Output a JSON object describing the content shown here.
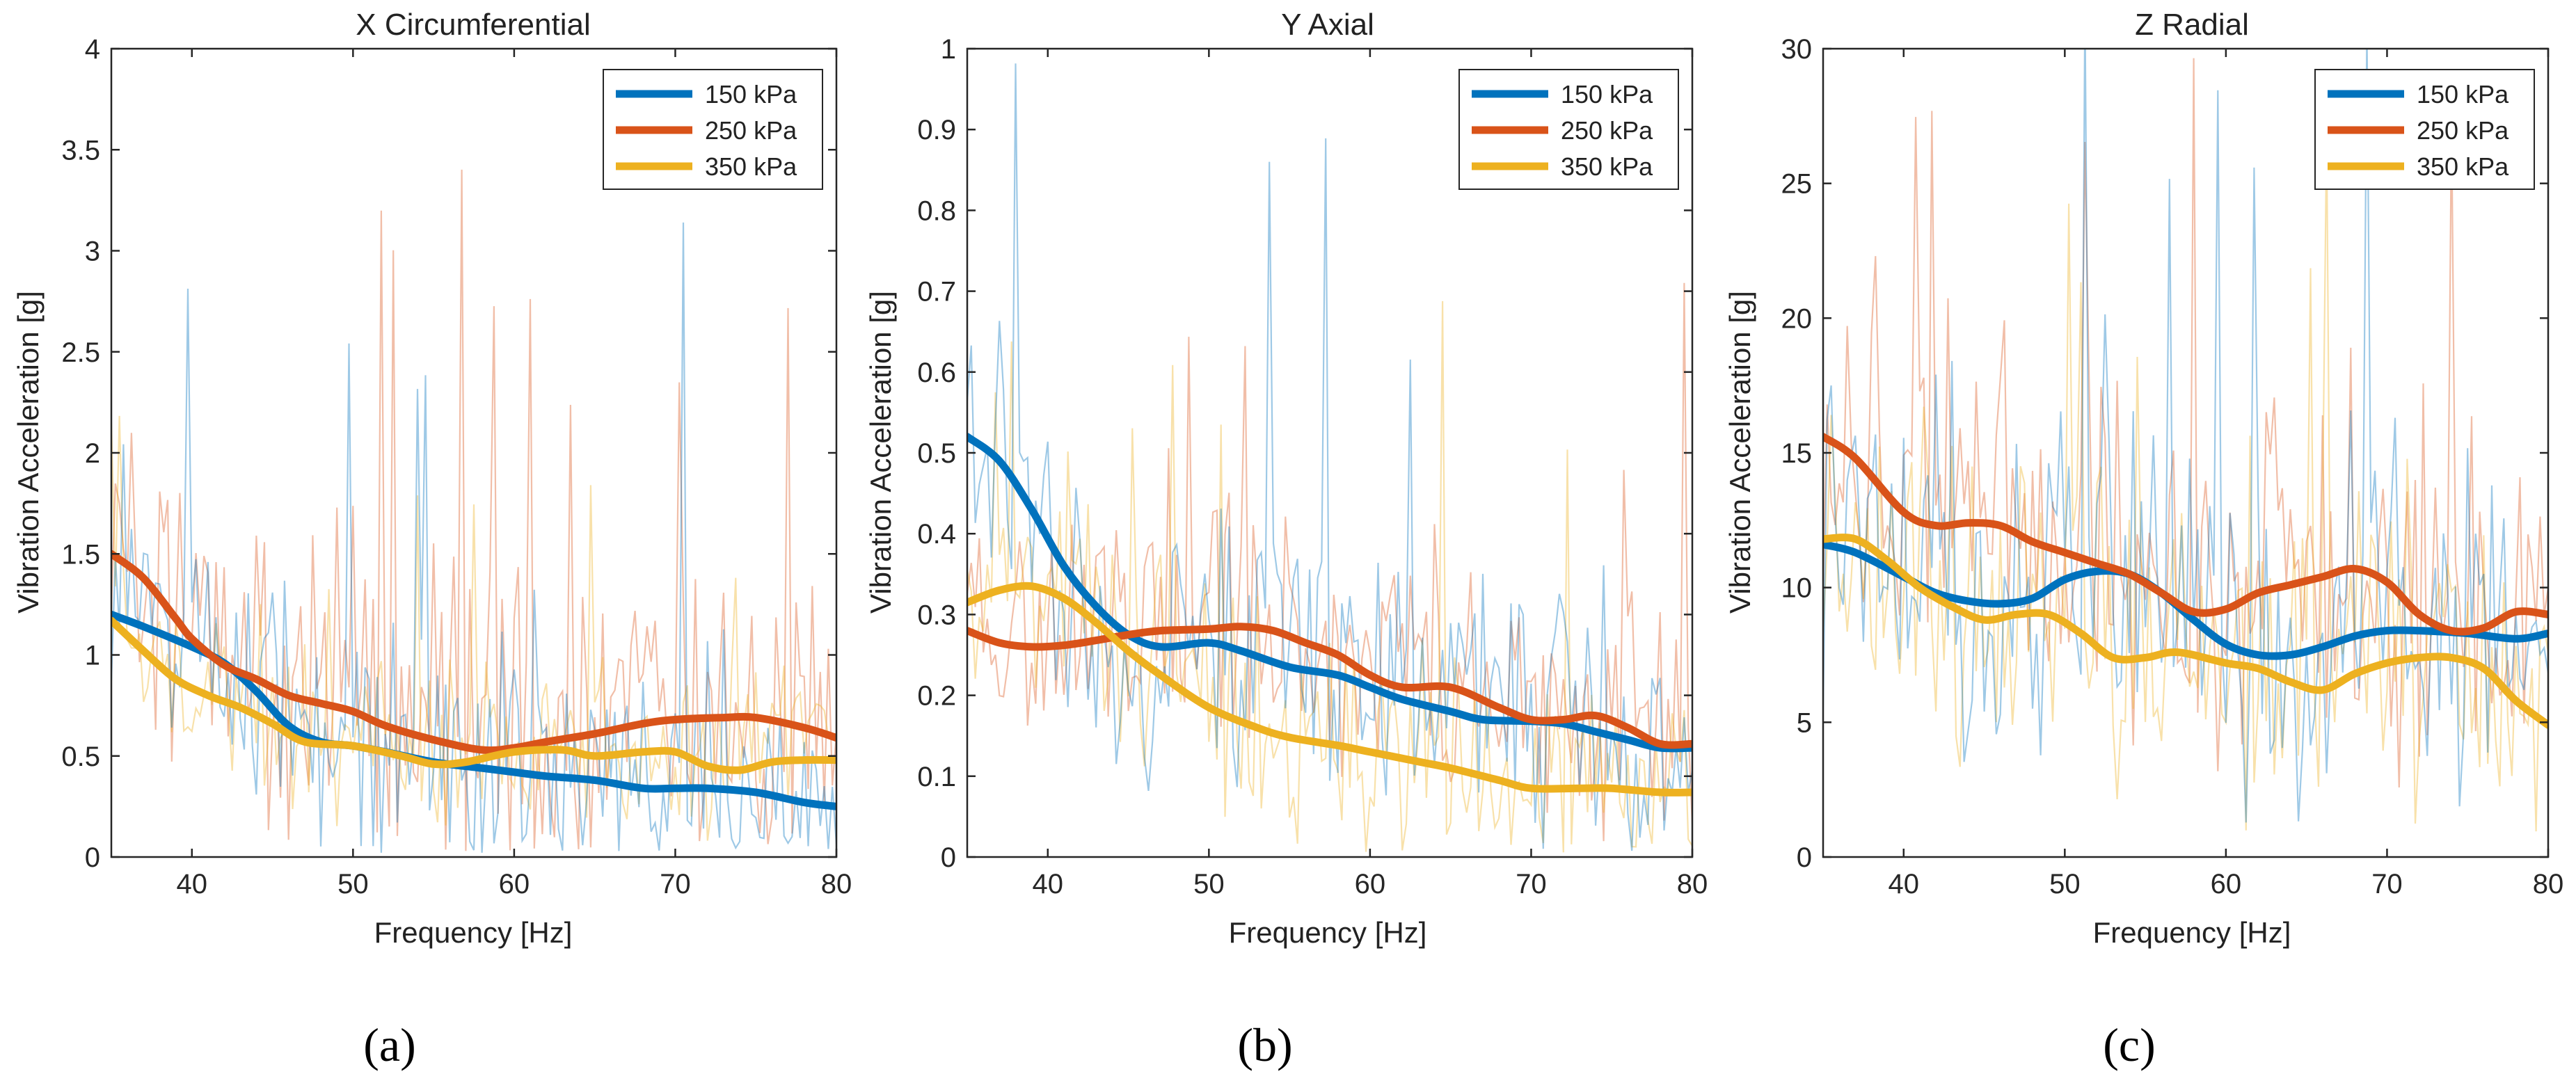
{
  "chart_data": [
    {
      "type": "line",
      "panel_label": "(a)",
      "title": "X Circumferential",
      "xlabel": "Frequency [Hz]",
      "ylabel": "Vibration Acceleration [g]",
      "xlim": [
        35,
        80
      ],
      "ylim": [
        0,
        4
      ],
      "xticks": [
        40,
        50,
        60,
        70,
        80
      ],
      "yticks": [
        0,
        0.5,
        1,
        1.5,
        2,
        2.5,
        3,
        3.5,
        4
      ],
      "ytick_labels": [
        "0",
        "0.5",
        "1",
        "1.5",
        "2",
        "2.5",
        "3",
        "3.5",
        "4"
      ],
      "legend_position": "top-right",
      "raw_noise": [
        0.55,
        0.65,
        0.35
      ],
      "series": [
        {
          "name": "150 kPa",
          "color": "#0072BD",
          "x": [
            35,
            37,
            40,
            42,
            44,
            46,
            48,
            50,
            52,
            55,
            58,
            60,
            62,
            65,
            68,
            70,
            72,
            75,
            78,
            80
          ],
          "y": [
            1.2,
            1.14,
            1.04,
            0.96,
            0.82,
            0.65,
            0.57,
            0.55,
            0.52,
            0.47,
            0.44,
            0.42,
            0.4,
            0.38,
            0.34,
            0.34,
            0.34,
            0.32,
            0.27,
            0.25
          ]
        },
        {
          "name": "250 kPa",
          "color": "#D95319",
          "x": [
            35,
            37,
            39,
            40,
            42,
            44,
            46,
            48,
            50,
            52,
            55,
            58,
            60,
            62,
            65,
            68,
            70,
            73,
            75,
            78,
            80
          ],
          "y": [
            1.5,
            1.38,
            1.18,
            1.08,
            0.95,
            0.88,
            0.8,
            0.76,
            0.72,
            0.65,
            0.58,
            0.53,
            0.54,
            0.57,
            0.61,
            0.66,
            0.68,
            0.69,
            0.69,
            0.64,
            0.59
          ]
        },
        {
          "name": "350 kPa",
          "color": "#EDB120",
          "x": [
            35,
            37,
            39,
            41,
            43,
            45,
            47,
            50,
            53,
            55,
            57,
            60,
            63,
            65,
            68,
            70,
            72,
            74,
            76,
            78,
            80
          ],
          "y": [
            1.17,
            1.02,
            0.88,
            0.8,
            0.74,
            0.66,
            0.57,
            0.55,
            0.5,
            0.46,
            0.47,
            0.52,
            0.53,
            0.5,
            0.52,
            0.52,
            0.45,
            0.43,
            0.47,
            0.48,
            0.48
          ]
        }
      ]
    },
    {
      "type": "line",
      "panel_label": "(b)",
      "title": "Y Axial",
      "xlabel": "Frequency [Hz]",
      "ylabel": "Vibration Acceleration [g]",
      "xlim": [
        35,
        80
      ],
      "ylim": [
        0,
        1
      ],
      "xticks": [
        40,
        50,
        60,
        70,
        80
      ],
      "yticks": [
        0,
        0.1,
        0.2,
        0.3,
        0.4,
        0.5,
        0.6,
        0.7,
        0.8,
        0.9,
        1
      ],
      "ytick_labels": [
        "0",
        "0.1",
        "0.2",
        "0.3",
        "0.4",
        "0.5",
        "0.6",
        "0.7",
        "0.8",
        "0.9",
        "1"
      ],
      "legend_position": "top-right",
      "raw_noise": [
        0.15,
        0.14,
        0.12
      ],
      "series": [
        {
          "name": "150 kPa",
          "color": "#0072BD",
          "x": [
            35,
            37,
            39,
            41,
            43,
            45,
            47,
            50,
            52,
            55,
            58,
            60,
            62,
            65,
            67,
            70,
            72,
            74,
            76,
            78,
            80
          ],
          "y": [
            0.52,
            0.49,
            0.43,
            0.36,
            0.31,
            0.275,
            0.26,
            0.265,
            0.255,
            0.235,
            0.225,
            0.21,
            0.195,
            0.18,
            0.17,
            0.168,
            0.165,
            0.155,
            0.145,
            0.135,
            0.135
          ]
        },
        {
          "name": "250 kPa",
          "color": "#D95319",
          "x": [
            35,
            37,
            39,
            41,
            43,
            45,
            47,
            50,
            52,
            54,
            56,
            58,
            60,
            62,
            65,
            68,
            70,
            72,
            74,
            76,
            78,
            80
          ],
          "y": [
            0.28,
            0.265,
            0.26,
            0.262,
            0.268,
            0.275,
            0.28,
            0.282,
            0.285,
            0.28,
            0.265,
            0.25,
            0.225,
            0.21,
            0.21,
            0.185,
            0.17,
            0.17,
            0.175,
            0.16,
            0.14,
            0.14
          ]
        },
        {
          "name": "350 kPa",
          "color": "#EDB120",
          "x": [
            35,
            37,
            39,
            41,
            43,
            45,
            47,
            50,
            53,
            55,
            58,
            60,
            63,
            65,
            68,
            70,
            73,
            75,
            78,
            80
          ],
          "y": [
            0.315,
            0.33,
            0.335,
            0.32,
            0.29,
            0.255,
            0.225,
            0.185,
            0.16,
            0.148,
            0.138,
            0.13,
            0.118,
            0.11,
            0.095,
            0.085,
            0.085,
            0.085,
            0.08,
            0.08
          ]
        }
      ]
    },
    {
      "type": "line",
      "panel_label": "(c)",
      "title": "Z Radial",
      "xlabel": "Frequency [Hz]",
      "ylabel": "Vibration Acceleration [g]",
      "xlim": [
        35,
        80
      ],
      "ylim": [
        0,
        30
      ],
      "xticks": [
        40,
        50,
        60,
        70,
        80
      ],
      "yticks": [
        0,
        5,
        10,
        15,
        20,
        25,
        30
      ],
      "ytick_labels": [
        "0",
        "5",
        "10",
        "15",
        "20",
        "25",
        "30"
      ],
      "legend_position": "top-right",
      "raw_noise": [
        5.5,
        6,
        5
      ],
      "series": [
        {
          "name": "150 kPa",
          "color": "#0072BD",
          "x": [
            35,
            37,
            40,
            42,
            44,
            46,
            48,
            50,
            52,
            54,
            56,
            58,
            60,
            62,
            64,
            66,
            68,
            70,
            72,
            75,
            78,
            80
          ],
          "y": [
            11.6,
            11.3,
            10.4,
            9.8,
            9.5,
            9.4,
            9.6,
            10.3,
            10.6,
            10.5,
            9.8,
            8.8,
            7.9,
            7.5,
            7.5,
            7.8,
            8.2,
            8.4,
            8.4,
            8.3,
            8.1,
            8.3
          ]
        },
        {
          "name": "250 kPa",
          "color": "#D95319",
          "x": [
            35,
            37,
            40,
            42,
            44,
            46,
            48,
            50,
            52,
            54,
            56,
            58,
            60,
            62,
            64,
            66,
            68,
            70,
            72,
            74,
            76,
            78,
            80
          ],
          "y": [
            15.6,
            14.8,
            12.8,
            12.3,
            12.4,
            12.3,
            11.7,
            11.3,
            10.9,
            10.5,
            9.8,
            9.1,
            9.2,
            9.8,
            10.1,
            10.4,
            10.7,
            10.2,
            9.0,
            8.4,
            8.5,
            9.1,
            9.0
          ]
        },
        {
          "name": "350 kPa",
          "color": "#EDB120",
          "x": [
            35,
            37,
            39,
            41,
            43,
            45,
            47,
            49,
            51,
            53,
            55,
            57,
            60,
            62,
            64,
            66,
            68,
            70,
            72,
            74,
            76,
            78,
            80
          ],
          "y": [
            11.8,
            11.8,
            11.0,
            10.0,
            9.3,
            8.8,
            9.0,
            9.0,
            8.3,
            7.4,
            7.4,
            7.6,
            7.2,
            7.0,
            6.5,
            6.2,
            6.8,
            7.2,
            7.4,
            7.4,
            7.0,
            5.8,
            4.9
          ]
        }
      ]
    }
  ]
}
